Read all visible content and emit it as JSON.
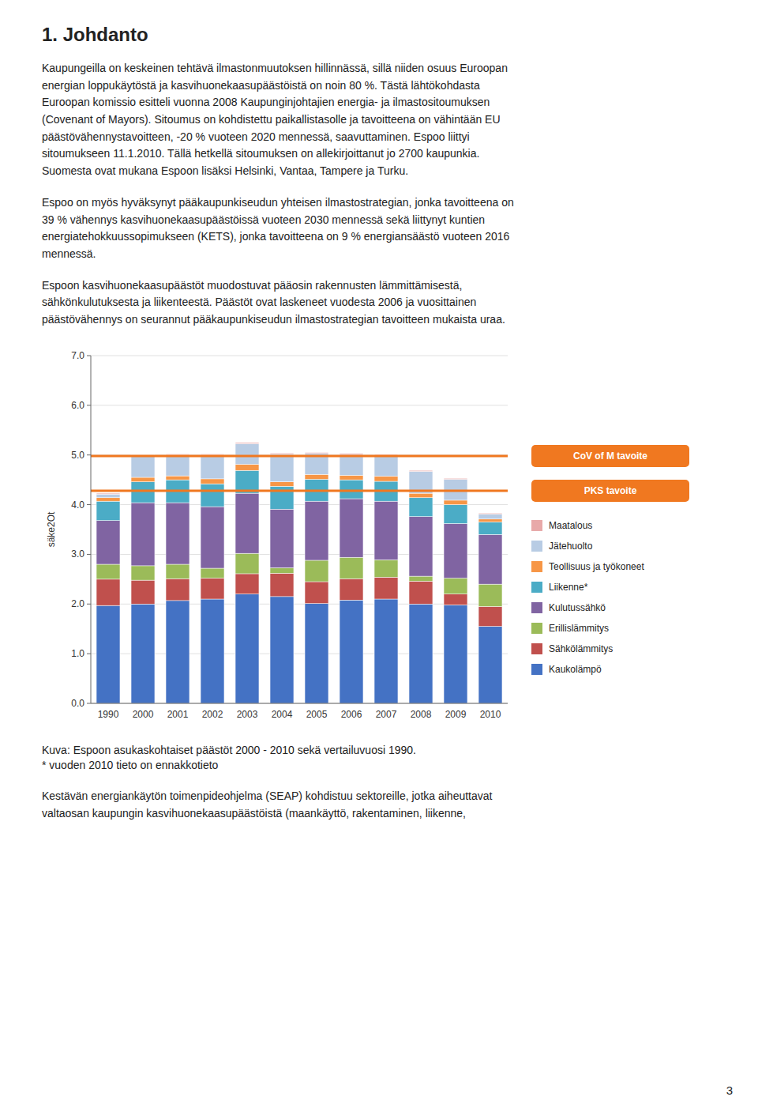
{
  "page": {
    "heading": "1. Johdanto",
    "paragraphs_before": [
      "Kaupungeilla on keskeinen tehtävä ilmastonmuutoksen hillinnässä, sillä niiden osuus Euroopan\nenergian loppukäytöstä ja kasvihuonekaasupäästöistä on noin 80 %. Tästä lähtökohdasta\nEuroopan komissio esitteli vuonna 2008 Kaupunginjohtajien energia- ja ilmastositoumuksen\n(Covenant of Mayors). Sitoumus on kohdistettu paikallistasolle ja tavoitteena on vähintään EU\npäästövähennystavoitteen, -20 % vuoteen 2020 mennessä, saavuttaminen. Espoo liittyi\nsitoumukseen 11.1.2010. Tällä hetkellä sitoumuksen on allekirjoittanut jo 2700 kaupunkia.\nSuomesta ovat mukana Espoon lisäksi Helsinki, Vantaa, Tampere ja Turku.",
      "Espoo on myös hyväksynyt pääkaupunkiseudun yhteisen ilmastostrategian, jonka tavoitteena on\n39 % vähennys kasvihuonekaasupäästöissä vuoteen 2030 mennessä sekä liittynyt kuntien\nenergiatehokkuussopimukseen (KETS), jonka tavoitteena on 9 % energiansäästö vuoteen 2016\nmennessä.",
      "Espoon kasvihuonekaasupäästöt muodostuvat pääosin rakennusten lämmittämisestä,\nsähkönkulutuksesta ja liikenteestä. Päästöt ovat laskeneet vuodesta 2006 ja vuosittainen\npäästövähennys on seurannut pääkaupunkiseudun ilmastostrategian tavoitteen mukaista uraa."
    ],
    "caption": "Kuva: Espoon asukaskohtaiset päästöt 2000 - 2010 sekä vertailuvuosi 1990.\n* vuoden 2010 tieto on ennakkotieto",
    "paragraphs_after": [
      "Kestävän energiankäytön toimenpideohjelma (SEAP) kohdistuu sektoreille, jotka aiheuttavat\nvaltaosan kaupungin kasvihuonekaasupäästöistä (maankäyttö, rakentaminen, liikenne,"
    ],
    "page_number": "3"
  },
  "chart_data": {
    "type": "bar",
    "stacked": true,
    "grid": true,
    "legend": "right",
    "y_label": "säke2Ot",
    "categories": [
      "1990",
      "2000",
      "2001",
      "2002",
      "2003",
      "2004",
      "2005",
      "2006",
      "2007",
      "2008",
      "2009",
      "2010"
    ],
    "series": [
      {
        "name": "Kaukolämpö",
        "color": "#4472C4",
        "values": [
          1.97,
          2.0,
          2.07,
          2.1,
          2.2,
          2.15,
          2.01,
          2.08,
          2.1,
          2.0,
          1.98,
          1.55
        ]
      },
      {
        "name": "Sähkölämmitys",
        "color": "#C0504D",
        "values": [
          0.53,
          0.48,
          0.44,
          0.42,
          0.41,
          0.47,
          0.44,
          0.43,
          0.44,
          0.46,
          0.22,
          0.4
        ]
      },
      {
        "name": "Erillislämmitys",
        "color": "#9BBB59",
        "values": [
          0.3,
          0.29,
          0.29,
          0.2,
          0.41,
          0.11,
          0.43,
          0.43,
          0.35,
          0.1,
          0.32,
          0.45
        ]
      },
      {
        "name": "Kulutussähkö",
        "color": "#8064A2",
        "values": [
          0.88,
          1.27,
          1.24,
          1.24,
          1.21,
          1.18,
          1.19,
          1.18,
          1.18,
          1.2,
          1.1,
          1.0
        ]
      },
      {
        "name": "Liikenne*",
        "color": "#4BACC6",
        "values": [
          0.39,
          0.42,
          0.46,
          0.46,
          0.46,
          0.46,
          0.44,
          0.38,
          0.4,
          0.38,
          0.38,
          0.25
        ]
      },
      {
        "name": "Teollisuus ja työkoneet",
        "color": "#F79646",
        "values": [
          0.07,
          0.09,
          0.08,
          0.1,
          0.12,
          0.09,
          0.1,
          0.09,
          0.1,
          0.09,
          0.09,
          0.06
        ]
      },
      {
        "name": "Jätehuolto",
        "color": "#B8CCE4",
        "values": [
          0.07,
          0.43,
          0.42,
          0.48,
          0.42,
          0.56,
          0.42,
          0.42,
          0.42,
          0.44,
          0.42,
          0.1
        ]
      },
      {
        "name": "Maatalous",
        "color": "#E8A9A9",
        "values": [
          0.02,
          0.02,
          0.02,
          0.02,
          0.02,
          0.02,
          0.02,
          0.02,
          0.02,
          0.02,
          0.02,
          0.02
        ]
      }
    ],
    "reference_lines": [
      {
        "value": 4.98,
        "label": "CoV of M tavoite",
        "color": "#F07820"
      },
      {
        "value": 4.28,
        "label": "PKS tavoite",
        "color": "#F07820"
      }
    ],
    "ylim": [
      0.0,
      7.0
    ],
    "yticks": [
      {
        "value": 0.0,
        "label": "0.0"
      },
      {
        "value": 1.0,
        "label": "1.0"
      },
      {
        "value": 2.0,
        "label": "2.0"
      },
      {
        "value": 3.0,
        "label": "3.0"
      },
      {
        "value": 4.0,
        "label": "4.0"
      },
      {
        "value": 5.0,
        "label": "5.0"
      },
      {
        "value": 6.0,
        "label": "6.0"
      },
      {
        "value": 7.0,
        "label": "7.0"
      }
    ]
  }
}
